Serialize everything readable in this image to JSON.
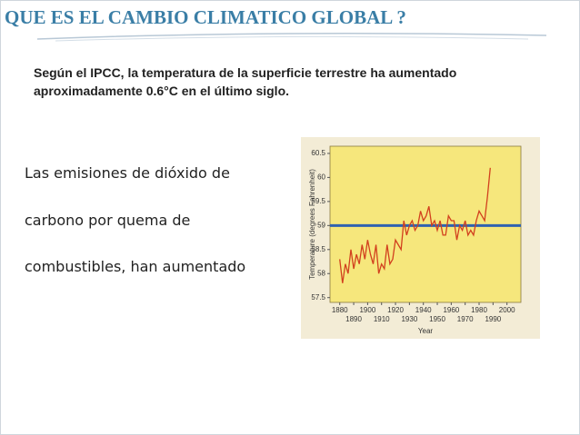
{
  "slide": {
    "title": "QUE ES EL CAMBIO CLIMATICO GLOBAL ?",
    "subtitle": [
      "Según el IPCC, la temperatura de la superficie terrestre ha aumentado",
      "aproximadamente 0.6°C en el último siglo."
    ],
    "body": [
      "Las emisiones de dióxido de",
      "carbono por quema de",
      "combustibles, han aumentado"
    ]
  },
  "chart_data": {
    "type": "line",
    "y_label": "Temperature (degrees Fahrenheit)",
    "x_label": "Year",
    "xlim": [
      1873,
      2010
    ],
    "ylim": [
      57.4,
      60.65
    ],
    "xticks": [
      1880,
      1890,
      1900,
      1910,
      1920,
      1930,
      1940,
      1950,
      1960,
      1970,
      1980,
      1990,
      2000
    ],
    "yticks": [
      57.5,
      58,
      58.5,
      59,
      59.5,
      60,
      60.5
    ],
    "reference_line": {
      "value": 59,
      "color": "#2f62b0"
    },
    "x": [
      1880,
      1882,
      1884,
      1886,
      1888,
      1890,
      1892,
      1894,
      1896,
      1898,
      1900,
      1902,
      1904,
      1906,
      1908,
      1910,
      1912,
      1914,
      1916,
      1918,
      1920,
      1922,
      1924,
      1926,
      1928,
      1930,
      1932,
      1934,
      1936,
      1938,
      1940,
      1942,
      1944,
      1946,
      1948,
      1950,
      1952,
      1954,
      1956,
      1958,
      1960,
      1962,
      1964,
      1966,
      1968,
      1970,
      1972,
      1974,
      1976,
      1978,
      1980,
      1982,
      1984,
      1986,
      1988
    ],
    "series": [
      {
        "color": "#d2401e",
        "values": [
          58.3,
          57.8,
          58.2,
          58.0,
          58.5,
          58.1,
          58.4,
          58.2,
          58.6,
          58.3,
          58.7,
          58.4,
          58.2,
          58.6,
          58.0,
          58.2,
          58.1,
          58.6,
          58.2,
          58.3,
          58.7,
          58.6,
          58.5,
          59.1,
          58.8,
          59.0,
          59.1,
          58.9,
          59.0,
          59.3,
          59.1,
          59.2,
          59.4,
          59.0,
          59.1,
          58.9,
          59.1,
          58.8,
          58.8,
          59.2,
          59.1,
          59.1,
          58.7,
          59.0,
          58.9,
          59.1,
          58.8,
          58.9,
          58.8,
          59.1,
          59.3,
          59.2,
          59.1,
          59.6,
          60.2
        ]
      }
    ]
  }
}
